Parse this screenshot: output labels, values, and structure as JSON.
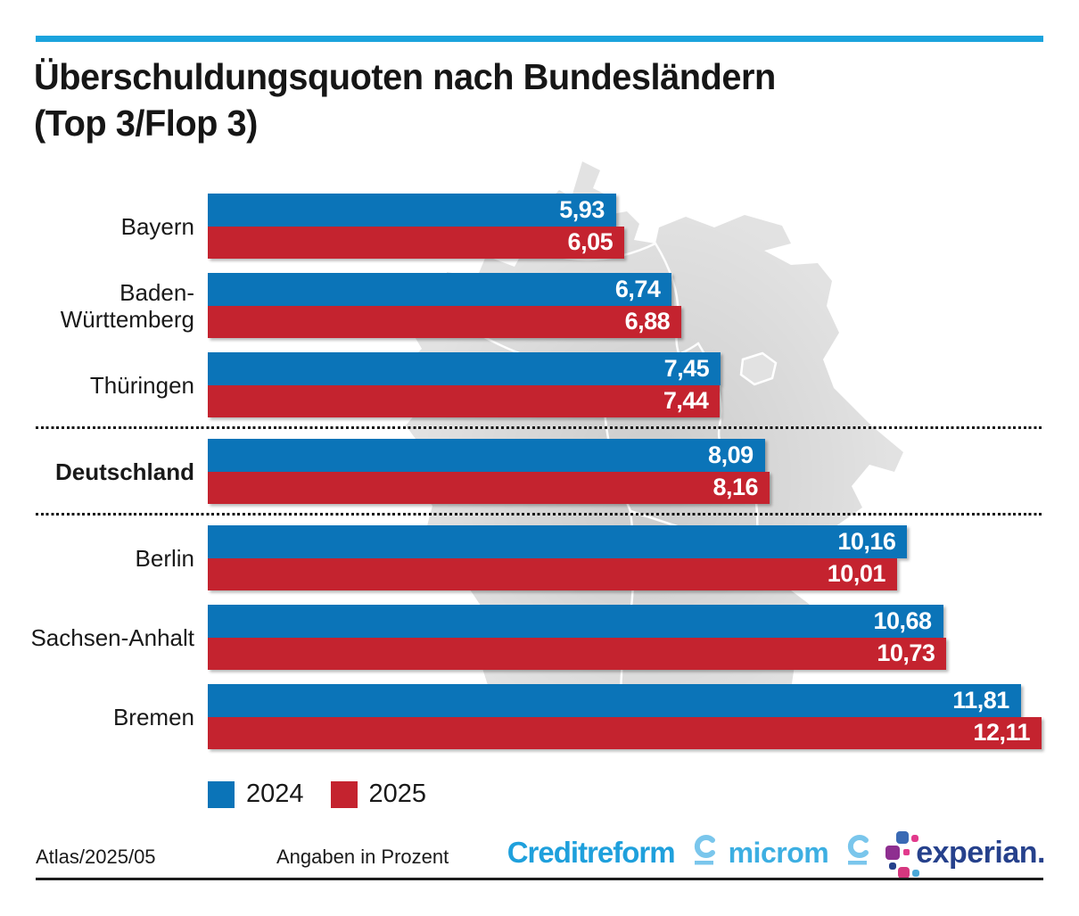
{
  "title": {
    "line1": "Überschuldungsquoten nach Bundesländern",
    "line2": "(Top 3/Flop 3)"
  },
  "chart_data": {
    "type": "bar",
    "orientation": "horizontal",
    "value_unit": "percent",
    "axis_max_implied": 12.11,
    "grid": false,
    "legend_position": "bottom-left",
    "categories": [
      "Bayern",
      "Baden-Württemberg",
      "Thüringen",
      "Deutschland",
      "Berlin",
      "Sachsen-Anhalt",
      "Bremen"
    ],
    "series": [
      {
        "name": "2024",
        "color": "#0b74b8",
        "values": [
          5.93,
          6.74,
          7.45,
          8.09,
          10.16,
          10.68,
          11.81
        ]
      },
      {
        "name": "2025",
        "color": "#c4232f",
        "values": [
          6.05,
          6.88,
          7.44,
          8.16,
          10.01,
          10.73,
          12.11
        ]
      }
    ],
    "rows": [
      {
        "label_lines": [
          "Bayern"
        ],
        "emphasis": false,
        "v2024": 5.93,
        "v2025": 6.05,
        "d2024": "5,93",
        "d2025": "6,05",
        "divider_after": false
      },
      {
        "label_lines": [
          "Baden-",
          "Württemberg"
        ],
        "emphasis": false,
        "v2024": 6.74,
        "v2025": 6.88,
        "d2024": "6,74",
        "d2025": "6,88",
        "divider_after": false
      },
      {
        "label_lines": [
          "Thüringen"
        ],
        "emphasis": false,
        "v2024": 7.45,
        "v2025": 7.44,
        "d2024": "7,45",
        "d2025": "7,44",
        "divider_after": true
      },
      {
        "label_lines": [
          "Deutschland"
        ],
        "emphasis": true,
        "v2024": 8.09,
        "v2025": 8.16,
        "d2024": "8,09",
        "d2025": "8,16",
        "divider_after": true
      },
      {
        "label_lines": [
          "Berlin"
        ],
        "emphasis": false,
        "v2024": 10.16,
        "v2025": 10.01,
        "d2024": "10,16",
        "d2025": "10,01",
        "divider_after": false
      },
      {
        "label_lines": [
          "Sachsen-Anhalt"
        ],
        "emphasis": false,
        "v2024": 10.68,
        "v2025": 10.73,
        "d2024": "10,68",
        "d2025": "10,73",
        "divider_after": false
      },
      {
        "label_lines": [
          "Bremen"
        ],
        "emphasis": false,
        "v2024": 11.81,
        "v2025": 12.11,
        "d2024": "11,81",
        "d2025": "12,11",
        "divider_after": false
      }
    ]
  },
  "legend": {
    "items": [
      {
        "label": "2024",
        "color": "#0b74b8"
      },
      {
        "label": "2025",
        "color": "#c4232f"
      }
    ]
  },
  "footer": {
    "source": "Atlas/2025/05",
    "note": "Angaben in Prozent",
    "logos": {
      "creditreform": "Creditreform",
      "microm": "microm",
      "experian": "experian."
    }
  },
  "colors": {
    "accent_rule": "#1ba3dd",
    "bar_2024": "#0b74b8",
    "bar_2025": "#c4232f",
    "map_gray": "#e2e2e2",
    "text": "#191919"
  }
}
